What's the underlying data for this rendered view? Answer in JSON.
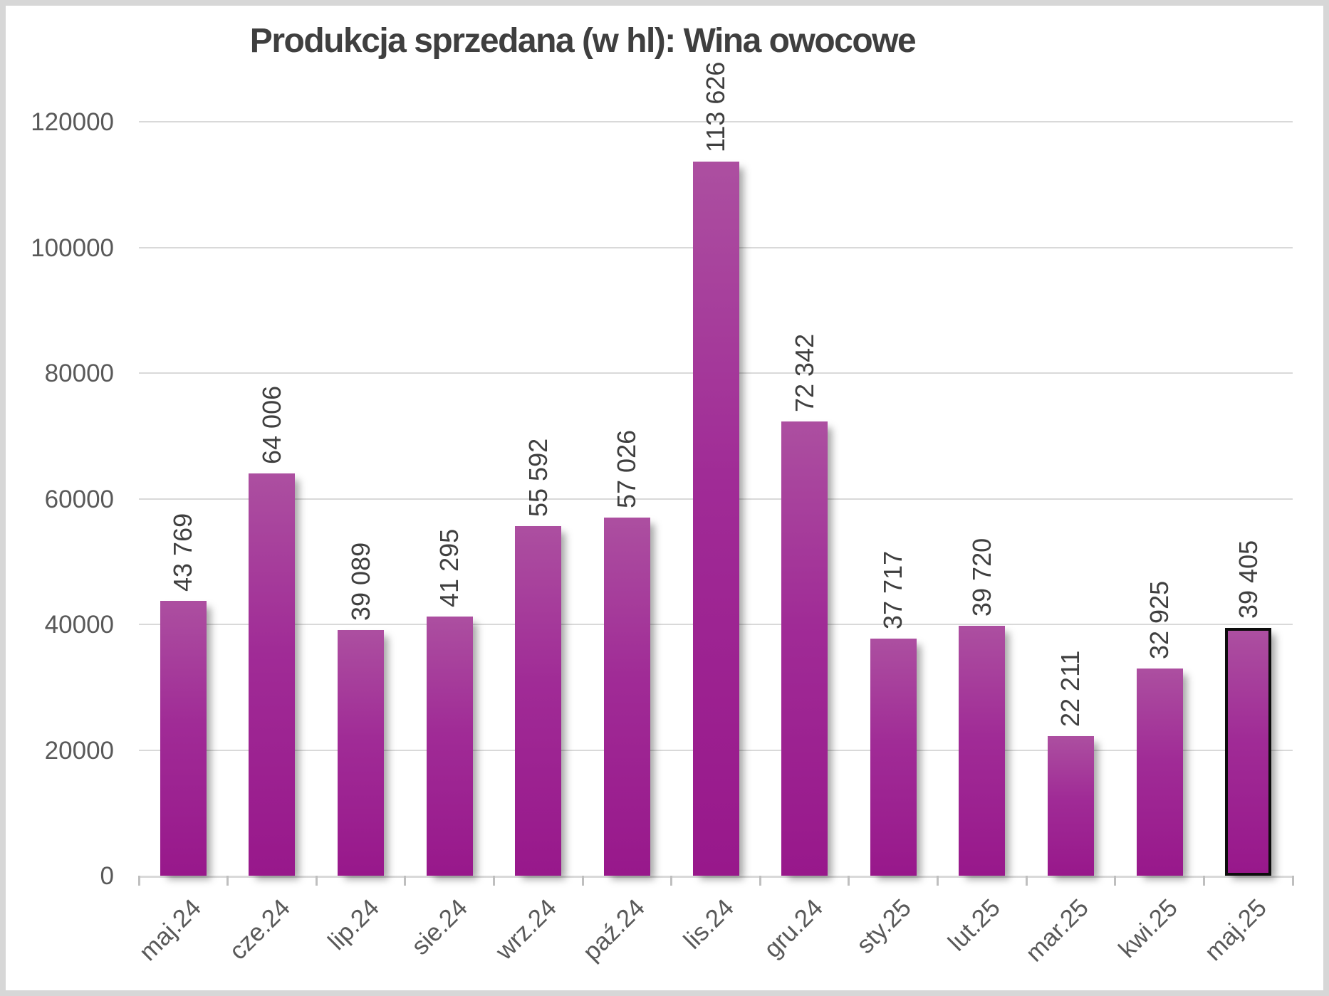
{
  "chart_data": {
    "type": "bar",
    "title": "Produkcja sprzedana (w hl): Wina owocowe",
    "categories": [
      "maj.24",
      "cze.24",
      "lip.24",
      "sie.24",
      "wrz.24",
      "paź.24",
      "lis.24",
      "gru.24",
      "sty.25",
      "lut.25",
      "mar.25",
      "kwi.25",
      "maj.25"
    ],
    "values": [
      43769,
      64006,
      39089,
      41295,
      55592,
      57026,
      113626,
      72342,
      37717,
      39720,
      22211,
      32925,
      39405
    ],
    "value_labels": [
      "43 769",
      "64 006",
      "39 089",
      "41 295",
      "55 592",
      "57 026",
      "113 626",
      "72 342",
      "37 717",
      "39 720",
      "22 211",
      "32 925",
      "39 405"
    ],
    "xlabel": "",
    "ylabel": "",
    "ylim": [
      0,
      120000
    ],
    "yticks": [
      0,
      20000,
      40000,
      60000,
      80000,
      100000,
      120000
    ],
    "ytick_labels": [
      "0",
      "20000",
      "40000",
      "60000",
      "80000",
      "100000",
      "120000"
    ],
    "grid": true,
    "legend": "none",
    "data_label_rotation": -90,
    "category_label_rotation": -45,
    "highlighted_category": "maj.25",
    "colors": {
      "bar_gradient_top": "#AC4FA0",
      "bar_gradient_bottom": "#98188B",
      "highlight_outline": "#0D0D0D",
      "gridline": "#D9D9D9",
      "tick": "#BFBFBF",
      "axis_text": "#595959",
      "data_label_text": "#3F3F3F",
      "title_text": "#3F3F3F",
      "chart_border": "#D7D7D7"
    }
  }
}
